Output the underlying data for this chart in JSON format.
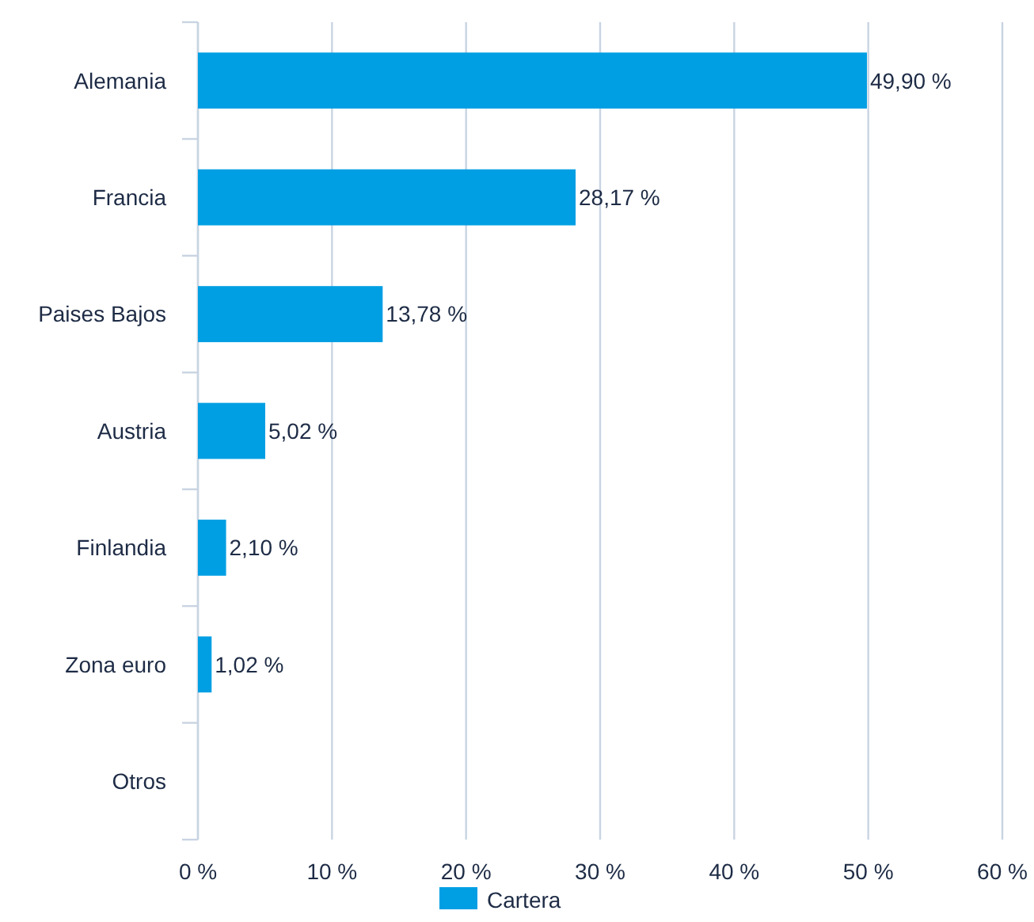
{
  "chart_data": {
    "type": "bar",
    "orientation": "horizontal",
    "categories": [
      "Alemania",
      "Francia",
      "Paises Bajos",
      "Austria",
      "Finlandia",
      "Zona euro",
      "Otros"
    ],
    "series": [
      {
        "name": "Cartera",
        "color": "#009fe3",
        "values": [
          49.9,
          28.17,
          13.78,
          5.02,
          2.1,
          1.02,
          null
        ]
      }
    ],
    "value_labels": [
      "49,90 %",
      "28,17 %",
      "13,78 %",
      "5,02 %",
      "2,10 %",
      "1,02 %",
      null
    ],
    "xlim": [
      0,
      60
    ],
    "xticks": [
      {
        "value": 0,
        "label": "0 %"
      },
      {
        "value": 10,
        "label": "10 %"
      },
      {
        "value": 20,
        "label": "20 %"
      },
      {
        "value": 30,
        "label": "30 %"
      },
      {
        "value": 40,
        "label": "40 %"
      },
      {
        "value": 50,
        "label": "50 %"
      },
      {
        "value": 60,
        "label": "60 %"
      }
    ],
    "grid": "x",
    "legend": "bottom"
  }
}
